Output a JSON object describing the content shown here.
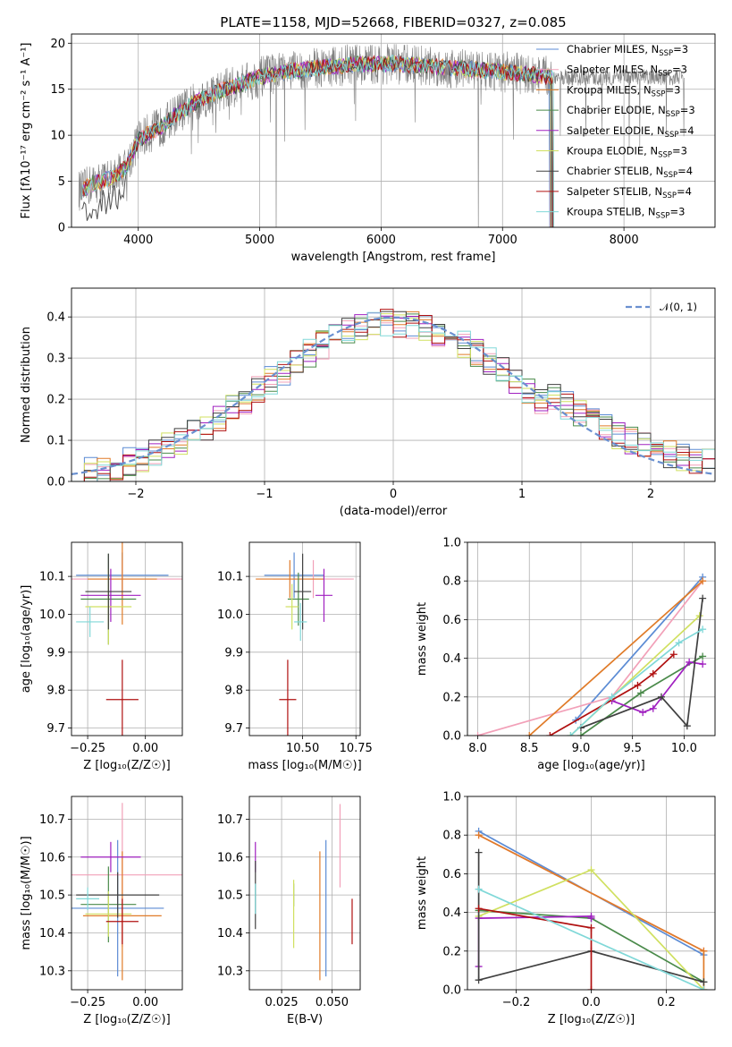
{
  "title": "PLATE=1158, MJD=52668, FIBERID=0327, z=0.085",
  "chart_data": [
    {
      "id": "spectrum",
      "type": "line",
      "xlabel": "wavelength [Angstrom, rest frame]",
      "ylabel": "Flux [fλ10⁻¹⁷ erg cm⁻² s⁻¹ A⁻¹]",
      "xlim": [
        3450,
        8750
      ],
      "ylim": [
        0,
        21
      ],
      "xticks": [
        4000,
        5000,
        6000,
        7000,
        8000
      ],
      "yticks": [
        0,
        5,
        10,
        15,
        20
      ],
      "observed_color": "#808080",
      "legend_position": "top-right",
      "legend": [
        {
          "label": "Chabrier MILES, N_SSP=3",
          "color": "#5b8bd4"
        },
        {
          "label": "Salpeter MILES, N_SSP=3",
          "color": "#f2a0b8"
        },
        {
          "label": "Kroupa MILES, N_SSP=3",
          "color": "#e07b28"
        },
        {
          "label": "Chabrier ELODIE, N_SSP=3",
          "color": "#4a8a4a"
        },
        {
          "label": "Salpeter ELODIE, N_SSP=4",
          "color": "#a020c0"
        },
        {
          "label": "Kroupa ELODIE, N_SSP=3",
          "color": "#d0e060"
        },
        {
          "label": "Chabrier STELIB, N_SSP=4",
          "color": "#404040"
        },
        {
          "label": "Salpeter STELIB, N_SSP=4",
          "color": "#b01010"
        },
        {
          "label": "Kroupa STELIB, N_SSP=3",
          "color": "#80d8d8"
        }
      ],
      "continuum_x": [
        3540,
        3600,
        3700,
        3800,
        3900,
        4000,
        4100,
        4200,
        4300,
        4400,
        4500,
        4600,
        4700,
        4800,
        4900,
        5000,
        5100,
        5200,
        5300,
        5400,
        5500,
        5600,
        5700,
        5800,
        5900,
        6000,
        6100,
        6200,
        6300,
        6400,
        6500,
        6600,
        6700,
        6800,
        6900,
        7000,
        7100,
        7200,
        7300,
        7400
      ],
      "continuum_y": [
        4,
        4.6,
        5,
        5.5,
        6.5,
        9.5,
        10.3,
        11,
        12.2,
        13,
        13.8,
        14.4,
        15,
        15.3,
        15.8,
        16.3,
        16.6,
        16.9,
        17,
        17.2,
        17.4,
        17.5,
        17.6,
        17.7,
        17.7,
        17.7,
        17.8,
        17.7,
        17.6,
        17.5,
        17.4,
        17.3,
        17.2,
        17.1,
        17.0,
        16.9,
        16.8,
        16.6,
        16.5,
        16.3
      ]
    },
    {
      "id": "residuals",
      "type": "bar",
      "xlabel": "(data-model)/error",
      "ylabel": "Normed distribution",
      "xlim": [
        -2.5,
        2.5
      ],
      "ylim": [
        0,
        0.47
      ],
      "xticks": [
        -2,
        -1,
        0,
        1,
        2
      ],
      "yticks": [
        0.0,
        0.1,
        0.2,
        0.3,
        0.4
      ],
      "gaussian_label": "𝒩(0, 1)",
      "gaussian_color": "#6a90d0",
      "legend_position": "top-right",
      "bin_width": 0.1,
      "series_colors": [
        "#5b8bd4",
        "#f2a0b8",
        "#e07b28",
        "#4a8a4a",
        "#a020c0",
        "#d0e060",
        "#404040",
        "#b01010",
        "#80d8d8"
      ]
    },
    {
      "id": "Z-age",
      "type": "scatter",
      "xlabel": "Z [log₁₀(Z/Z☉)]",
      "ylabel": "age  [log₁₀(age/yr)]",
      "xlim": [
        -0.32,
        0.16
      ],
      "ylim": [
        9.68,
        10.19
      ],
      "xticks": [
        -0.25,
        0.0
      ],
      "yticks": [
        9.7,
        9.8,
        9.9,
        10.0,
        10.1
      ],
      "points": [
        {
          "x": -0.1,
          "y": 10.103,
          "xerr": 0.2,
          "yerr": 0.06,
          "color": "#5b8bd4"
        },
        {
          "x": -0.1,
          "y": 10.093,
          "xerr": 0.28,
          "yerr": 0.05,
          "color": "#f2a0b8"
        },
        {
          "x": -0.1,
          "y": 10.093,
          "xerr": 0.15,
          "yerr": 0.12,
          "color": "#e07b28"
        },
        {
          "x": -0.16,
          "y": 10.04,
          "xerr": 0.12,
          "yerr": 0.12,
          "color": "#4a8a4a"
        },
        {
          "x": -0.15,
          "y": 10.05,
          "xerr": 0.13,
          "yerr": 0.07,
          "color": "#a020c0"
        },
        {
          "x": -0.16,
          "y": 10.02,
          "xerr": 0.1,
          "yerr": 0.1,
          "color": "#d0e060"
        },
        {
          "x": -0.16,
          "y": 10.06,
          "xerr": 0.1,
          "yerr": 0.1,
          "color": "#404040"
        },
        {
          "x": -0.1,
          "y": 9.775,
          "xerr": 0.07,
          "yerr": 0.105,
          "color": "#b01010"
        },
        {
          "x": -0.24,
          "y": 9.98,
          "xerr": 0.06,
          "yerr": 0.04,
          "color": "#80d8d8"
        }
      ]
    },
    {
      "id": "mass-age",
      "type": "scatter",
      "xlabel": "mass [log₁₀(M/M☉)]",
      "ylabel": "",
      "xlim": [
        10.25,
        10.77
      ],
      "ylim": [
        9.68,
        10.19
      ],
      "xticks": [
        10.5,
        10.75
      ],
      "yticks": [
        9.7,
        9.8,
        9.9,
        10.0,
        10.1
      ],
      "points": [
        {
          "x": 10.46,
          "y": 10.103,
          "xerr": 0.14,
          "yerr": 0.06,
          "color": "#5b8bd4"
        },
        {
          "x": 10.55,
          "y": 10.093,
          "xerr": 0.19,
          "yerr": 0.05,
          "color": "#f2a0b8"
        },
        {
          "x": 10.44,
          "y": 10.093,
          "xerr": 0.16,
          "yerr": 0.05,
          "color": "#e07b28"
        },
        {
          "x": 10.48,
          "y": 10.04,
          "xerr": 0.05,
          "yerr": 0.07,
          "color": "#4a8a4a"
        },
        {
          "x": 10.6,
          "y": 10.05,
          "xerr": 0.04,
          "yerr": 0.07,
          "color": "#a020c0"
        },
        {
          "x": 10.45,
          "y": 10.02,
          "xerr": 0.03,
          "yerr": 0.06,
          "color": "#d0e060"
        },
        {
          "x": 10.5,
          "y": 10.06,
          "xerr": 0.04,
          "yerr": 0.1,
          "color": "#404040"
        },
        {
          "x": 10.43,
          "y": 9.775,
          "xerr": 0.04,
          "yerr": 0.105,
          "color": "#b01010"
        },
        {
          "x": 10.49,
          "y": 9.98,
          "xerr": 0.03,
          "yerr": 0.05,
          "color": "#80d8d8"
        }
      ]
    },
    {
      "id": "age-massweight",
      "type": "line",
      "xlabel": "age  [log₁₀(age/yr)]",
      "ylabel": "mass weight",
      "xlim": [
        7.9,
        10.3
      ],
      "ylim": [
        0,
        1.0
      ],
      "xticks": [
        8.0,
        8.5,
        9.0,
        9.5,
        10.0
      ],
      "yticks": [
        0.0,
        0.2,
        0.4,
        0.6,
        0.8,
        1.0
      ],
      "series": [
        {
          "color": "#5b8bd4",
          "x": [
            8.95,
            10.18
          ],
          "y": [
            0.08,
            0.82
          ]
        },
        {
          "color": "#f2a0b8",
          "x": [
            8.0,
            9.3,
            10.18
          ],
          "y": [
            0.0,
            0.2,
            0.8
          ]
        },
        {
          "color": "#e07b28",
          "x": [
            8.5,
            10.18
          ],
          "y": [
            0.0,
            0.8
          ]
        },
        {
          "color": "#4a8a4a",
          "x": [
            9.0,
            9.58,
            10.18
          ],
          "y": [
            0.0,
            0.22,
            0.41
          ]
        },
        {
          "color": "#a020c0",
          "x": [
            9.3,
            9.6,
            9.7,
            10.05,
            10.18
          ],
          "y": [
            0.18,
            0.12,
            0.14,
            0.38,
            0.37
          ]
        },
        {
          "color": "#d0e060",
          "x": [
            8.9,
            10.15
          ],
          "y": [
            0.0,
            0.62
          ]
        },
        {
          "color": "#404040",
          "x": [
            9.0,
            9.78,
            10.03,
            10.18
          ],
          "y": [
            0.04,
            0.2,
            0.05,
            0.71
          ]
        },
        {
          "color": "#b01010",
          "x": [
            8.7,
            9.55,
            9.7,
            9.9
          ],
          "y": [
            0.0,
            0.26,
            0.32,
            0.42
          ]
        },
        {
          "color": "#80d8d8",
          "x": [
            8.9,
            9.3,
            9.95,
            10.18
          ],
          "y": [
            0.0,
            0.2,
            0.48,
            0.55
          ]
        }
      ]
    },
    {
      "id": "Z-mass",
      "type": "scatter",
      "xlabel": "Z [log₁₀(Z/Z☉)]",
      "ylabel": "mass [log₁₀(M/M☉)]",
      "xlim": [
        -0.32,
        0.16
      ],
      "ylim": [
        10.25,
        10.76
      ],
      "xticks": [
        -0.25,
        0.0
      ],
      "yticks": [
        10.3,
        10.4,
        10.5,
        10.6,
        10.7
      ],
      "points": [
        {
          "x": -0.12,
          "y": 10.465,
          "xerr": 0.2,
          "yerr": 0.18,
          "color": "#5b8bd4"
        },
        {
          "x": -0.1,
          "y": 10.553,
          "xerr": 0.26,
          "yerr": 0.19,
          "color": "#f2a0b8"
        },
        {
          "x": -0.1,
          "y": 10.445,
          "xerr": 0.17,
          "yerr": 0.17,
          "color": "#e07b28"
        },
        {
          "x": -0.16,
          "y": 10.475,
          "xerr": 0.12,
          "yerr": 0.1,
          "color": "#4a8a4a"
        },
        {
          "x": -0.15,
          "y": 10.6,
          "xerr": 0.13,
          "yerr": 0.04,
          "color": "#a020c0"
        },
        {
          "x": -0.16,
          "y": 10.45,
          "xerr": 0.1,
          "yerr": 0.06,
          "color": "#d0e060"
        },
        {
          "x": -0.12,
          "y": 10.5,
          "xerr": 0.18,
          "yerr": 0.06,
          "color": "#404040"
        },
        {
          "x": -0.1,
          "y": 10.43,
          "xerr": 0.07,
          "yerr": 0.06,
          "color": "#b01010"
        },
        {
          "x": -0.25,
          "y": 10.49,
          "xerr": 0.05,
          "yerr": 0.03,
          "color": "#80d8d8"
        }
      ]
    },
    {
      "id": "ebv-mass",
      "type": "scatter",
      "xlabel": "E(B-V)",
      "ylabel": "",
      "xlim": [
        0.009,
        0.064
      ],
      "ylim": [
        10.25,
        10.76
      ],
      "xticks": [
        0.025,
        0.05
      ],
      "yticks": [
        10.3,
        10.4,
        10.5,
        10.6,
        10.7
      ],
      "points": [
        {
          "x": 0.047,
          "y": 10.465,
          "xerr": 0,
          "yerr": 0.18,
          "color": "#5b8bd4"
        },
        {
          "x": 0.054,
          "y": 10.63,
          "xerr": 0,
          "yerr": 0.11,
          "color": "#f2a0b8"
        },
        {
          "x": 0.044,
          "y": 10.445,
          "xerr": 0,
          "yerr": 0.17,
          "color": "#e07b28"
        },
        {
          "x": 0.031,
          "y": 10.5,
          "xerr": 0,
          "yerr": 0.03,
          "color": "#4a8a4a"
        },
        {
          "x": 0.012,
          "y": 10.6,
          "xerr": 0,
          "yerr": 0.04,
          "color": "#a020c0"
        },
        {
          "x": 0.031,
          "y": 10.45,
          "xerr": 0,
          "yerr": 0.09,
          "color": "#d0e060"
        },
        {
          "x": 0.012,
          "y": 10.5,
          "xerr": 0,
          "yerr": 0.09,
          "color": "#404040"
        },
        {
          "x": 0.06,
          "y": 10.43,
          "xerr": 0,
          "yerr": 0.06,
          "color": "#b01010"
        },
        {
          "x": 0.012,
          "y": 10.49,
          "xerr": 0,
          "yerr": 0.04,
          "color": "#80d8d8"
        }
      ]
    },
    {
      "id": "Z-massweight",
      "type": "line",
      "xlabel": "Z [log₁₀(Z/Z☉)]",
      "ylabel": "mass weight",
      "xlim": [
        -0.33,
        0.33
      ],
      "ylim": [
        0,
        1.0
      ],
      "xticks": [
        -0.2,
        0.0,
        0.2
      ],
      "yticks": [
        0.0,
        0.2,
        0.4,
        0.6,
        0.8,
        1.0
      ],
      "series": [
        {
          "color": "#5b8bd4",
          "x": [
            -0.3,
            0.3
          ],
          "y": [
            0.82,
            0.18
          ]
        },
        {
          "color": "#f2a0b8",
          "x": [
            -0.3,
            0.3
          ],
          "y": [
            0.8,
            0.2
          ]
        },
        {
          "color": "#e07b28",
          "x": [
            -0.3,
            0.3,
            0.3
          ],
          "y": [
            0.8,
            0.2,
            0.0
          ]
        },
        {
          "color": "#4a8a4a",
          "x": [
            -0.3,
            0.0,
            0.3
          ],
          "y": [
            0.41,
            0.37,
            0.04
          ]
        },
        {
          "color": "#a020c0",
          "x": [
            -0.3,
            -0.3,
            0.0,
            0.0
          ],
          "y": [
            0.12,
            0.37,
            0.38,
            0.37
          ]
        },
        {
          "color": "#d0e060",
          "x": [
            -0.3,
            0.0,
            0.3
          ],
          "y": [
            0.38,
            0.62,
            0.0
          ]
        },
        {
          "color": "#404040",
          "x": [
            -0.3,
            -0.3,
            0.0,
            0.3
          ],
          "y": [
            0.71,
            0.05,
            0.2,
            0.04
          ]
        },
        {
          "color": "#b01010",
          "x": [
            -0.3,
            0.0,
            0.0
          ],
          "y": [
            0.42,
            0.32,
            0.0
          ]
        },
        {
          "color": "#80d8d8",
          "x": [
            -0.3,
            0.3
          ],
          "y": [
            0.52,
            0.0
          ]
        }
      ]
    }
  ]
}
